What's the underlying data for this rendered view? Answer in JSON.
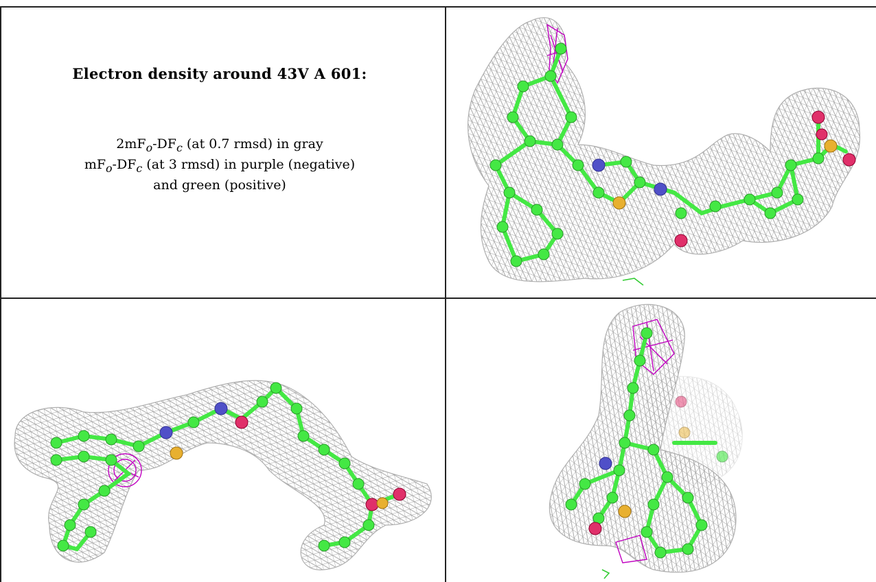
{
  "caption": {
    "title": "Electron density around 43V A 601:",
    "line1_prefix": "2mF",
    "line1_sub1": "o",
    "line1_mid": "-DF",
    "line1_sub2": "c",
    "line1_suffix": " (at 0.7 rmsd) in gray",
    "line2_prefix": "mF",
    "line2_sub1": "o",
    "line2_mid": "-DF",
    "line2_sub2": "c",
    "line2_suffix": " (at 3 rmsd) in purple (negative)",
    "line3": "and green (positive)"
  },
  "colors": {
    "mesh_gray": "#9a9a9a",
    "negative_purple": "#c000c0",
    "positive_green": "#33cc33",
    "carbon": "#44e844",
    "nitrogen": "#5050c8",
    "oxygen": "#e0306a",
    "sulfur": "#e8b030"
  },
  "panels": [
    {
      "name": "view-top-right"
    },
    {
      "name": "view-bottom-left"
    },
    {
      "name": "view-bottom-right"
    }
  ]
}
